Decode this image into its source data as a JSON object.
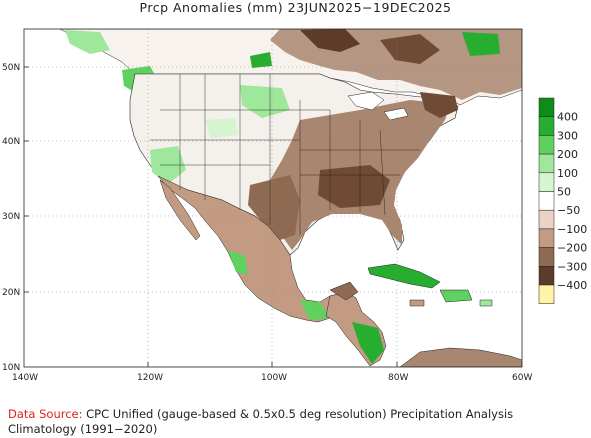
{
  "title": "Prcp Anomalies (mm) 23JUN2025−19DEC2025",
  "map": {
    "lon_ticks": [
      "140W",
      "120W",
      "100W",
      "80W",
      "60W"
    ],
    "lat_ticks": [
      "10N",
      "20N",
      "30N",
      "40N",
      "50N"
    ],
    "region": "North America"
  },
  "legend": {
    "labels": [
      "400",
      "300",
      "200",
      "100",
      "50",
      "−50",
      "−100",
      "−200",
      "−300",
      "−400"
    ],
    "colors": [
      "#0e8c1a",
      "#27ad2f",
      "#5fd15f",
      "#9ee79b",
      "#d4f5cf",
      "#ffffff",
      "#ead2c6",
      "#c39b83",
      "#8e6a52",
      "#5c3b28",
      "#fff3a6"
    ]
  },
  "footer": {
    "source_label": "Data Source:",
    "source_text": "CPC Unified (gauge-based & 0.5x0.5 deg resolution) Precipitation Analysis",
    "climatology": "Climatology (1991−2020)"
  }
}
